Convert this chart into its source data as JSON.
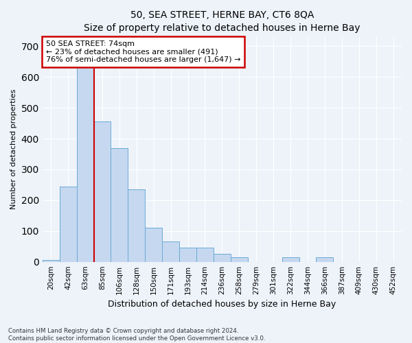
{
  "title1": "50, SEA STREET, HERNE BAY, CT6 8QA",
  "title2": "Size of property relative to detached houses in Herne Bay",
  "xlabel": "Distribution of detached houses by size in Herne Bay",
  "ylabel": "Number of detached properties",
  "categories": [
    "20sqm",
    "42sqm",
    "63sqm",
    "85sqm",
    "106sqm",
    "128sqm",
    "150sqm",
    "171sqm",
    "193sqm",
    "214sqm",
    "236sqm",
    "258sqm",
    "279sqm",
    "301sqm",
    "322sqm",
    "344sqm",
    "366sqm",
    "387sqm",
    "409sqm",
    "430sqm",
    "452sqm"
  ],
  "values": [
    5,
    245,
    640,
    455,
    370,
    235,
    110,
    65,
    45,
    45,
    25,
    15,
    0,
    0,
    15,
    0,
    15,
    0,
    0,
    0,
    0
  ],
  "bar_color": "#c5d8f0",
  "bar_edge_color": "#6aaad4",
  "annotation_text": "50 SEA STREET: 74sqm\n← 23% of detached houses are smaller (491)\n76% of semi-detached houses are larger (1,647) →",
  "annotation_box_color": "#ffffff",
  "annotation_box_edge": "#cc0000",
  "vline_color": "#cc0000",
  "ylim": [
    0,
    730
  ],
  "yticks": [
    0,
    100,
    200,
    300,
    400,
    500,
    600,
    700
  ],
  "footnote": "Contains HM Land Registry data © Crown copyright and database right 2024.\nContains public sector information licensed under the Open Government Licence v3.0.",
  "bg_color": "#eef3fa",
  "plot_bg_color": "#eef3fa",
  "title1_fontsize": 10,
  "title2_fontsize": 9,
  "ylabel_fontsize": 8,
  "xlabel_fontsize": 9
}
